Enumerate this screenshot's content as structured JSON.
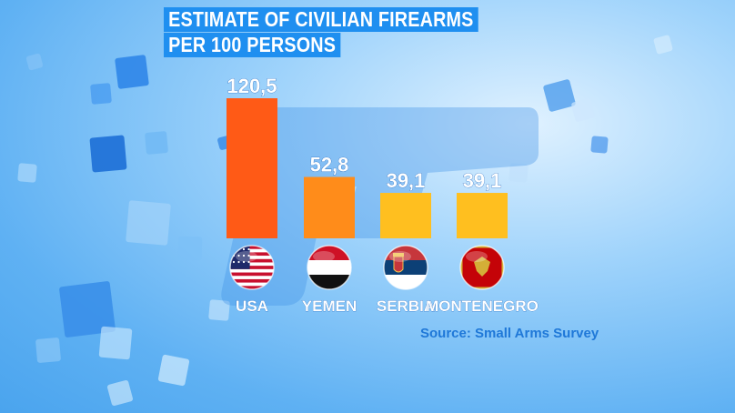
{
  "header": {
    "title_line1": "ESTIMATE OF CIVILIAN FIREARMS",
    "title_line2": "PER 100 PERSONS"
  },
  "source": "Source: Small Arms Survey",
  "chart_data": {
    "type": "bar",
    "title": "ESTIMATE OF CIVILIAN FIREARMS PER 100 PERSONS",
    "categories": [
      "USA",
      "YEMEN",
      "SERBIA",
      "MONTENEGRO"
    ],
    "values": [
      120.5,
      52.8,
      39.1,
      39.1
    ],
    "value_labels": [
      "120,5",
      "52,8",
      "39,1",
      "39,1"
    ],
    "colors": [
      "#ff5a16",
      "#ff8c1a",
      "#ffbf1f",
      "#ffbf1f"
    ],
    "flags": [
      "usa-flag-icon",
      "yemen-flag-icon",
      "serbia-flag-icon",
      "montenegro-flag-icon"
    ],
    "ylim": [
      0,
      130
    ],
    "grid": false,
    "legend": "none"
  },
  "colors": {
    "title_bg": "#1f8ff0",
    "label_text": "#ffffff",
    "source_text": "#1f78d8"
  }
}
